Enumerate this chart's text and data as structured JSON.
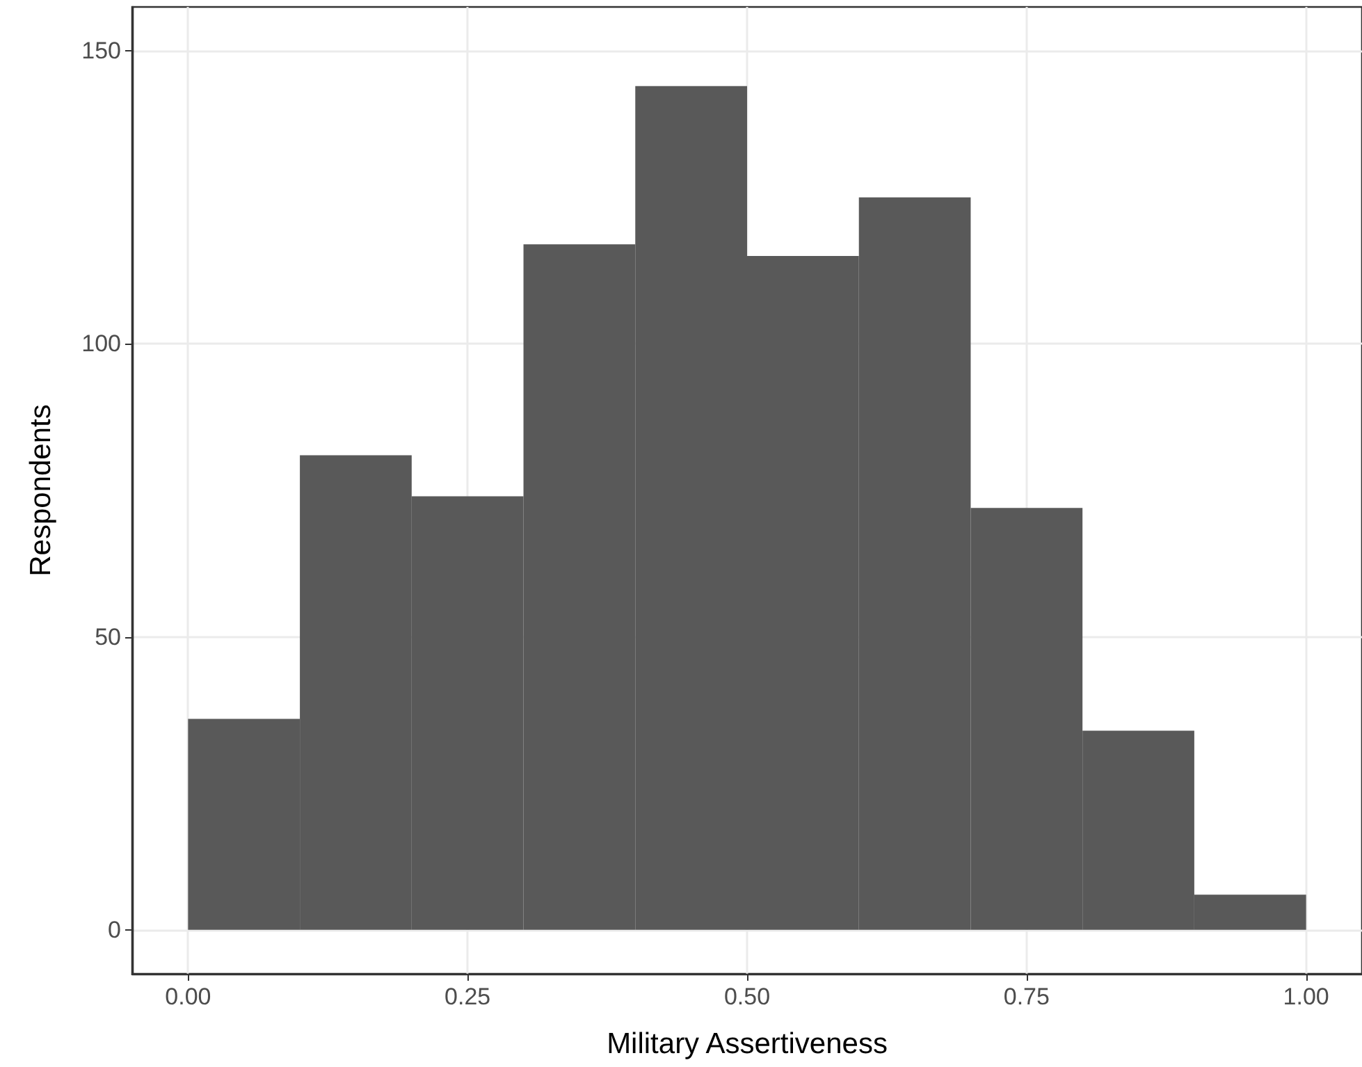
{
  "chart_data": {
    "type": "histogram",
    "xlabel": "Military Assertiveness",
    "ylabel": "Respondents",
    "bins": [
      0,
      0.1,
      0.2,
      0.3,
      0.4,
      0.5,
      0.6,
      0.7,
      0.8,
      0.9,
      1.0
    ],
    "values": [
      36,
      81,
      74,
      117,
      144,
      115,
      125,
      72,
      34,
      6
    ],
    "color": "#595959",
    "xlim": [
      -0.05,
      1.05
    ],
    "xticks": [
      {
        "value": 0,
        "label": "0.00"
      },
      {
        "value": 0.25,
        "label": "0.25"
      },
      {
        "value": 0.5,
        "label": "0.50"
      },
      {
        "value": 0.75,
        "label": "0.75"
      },
      {
        "value": 1,
        "label": "1.00"
      }
    ],
    "ylim": [
      -7.5,
      157.5
    ],
    "yticks": [
      0,
      50,
      100,
      150
    ],
    "grid": true
  }
}
